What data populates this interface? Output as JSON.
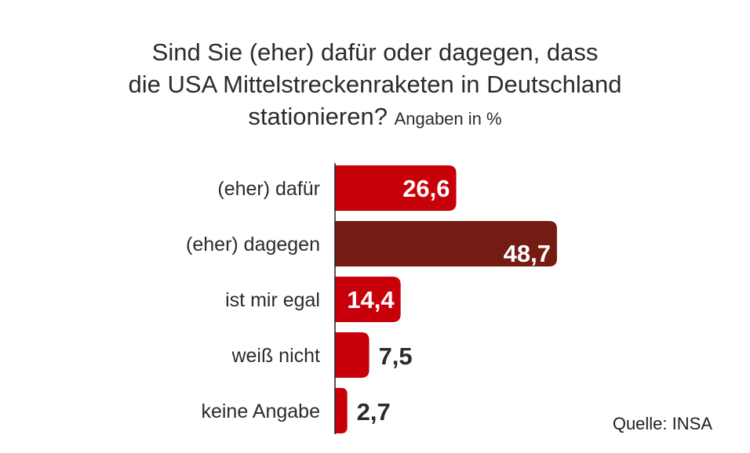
{
  "chart_data": {
    "type": "bar",
    "orientation": "horizontal",
    "title_lines": [
      "Sind Sie (eher) dafür oder dagegen, dass",
      "die USA Mittelstreckenraketen in Deutschland",
      "stationieren?"
    ],
    "unit_label": "Angaben in %",
    "categories": [
      "(eher) dafür",
      "(eher) dagegen",
      "ist mir egal",
      "weiß nicht",
      "keine Angabe"
    ],
    "values": [
      26.6,
      48.7,
      14.4,
      7.5,
      2.7
    ],
    "value_labels": [
      "26,6",
      "48,7",
      "14,4",
      "7,5",
      "2,7"
    ],
    "colors": [
      "#c80009",
      "#741b13",
      "#c80009",
      "#c80009",
      "#c80009"
    ],
    "xlim": [
      0,
      50
    ],
    "source": "Quelle: INSA"
  }
}
